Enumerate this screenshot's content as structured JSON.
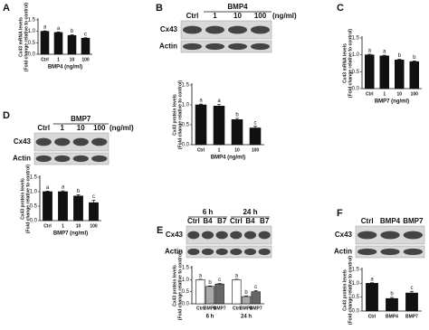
{
  "chart_data": [
    {
      "type": "bar",
      "panel": "A",
      "ylabel": [
        "Cx43 mRNA levels",
        "(Fold change relative to control)"
      ],
      "xlabel": "BMP4 (ng/ml)",
      "categories": [
        "Ctrl",
        "1",
        "10",
        "100"
      ],
      "values": [
        1.0,
        0.95,
        0.82,
        0.7
      ],
      "errors": [
        0.02,
        0.03,
        0.03,
        0.02
      ],
      "labels": [
        "a",
        "a",
        "b",
        "c"
      ],
      "color": "#111111",
      "ylim": [
        0,
        1.5
      ],
      "yticks": [
        {
          "value": 0,
          "label": "0.0"
        },
        0.5,
        {
          "value": 1,
          "label": "1.0"
        },
        1.5
      ]
    },
    {
      "type": "bar",
      "panel": "B",
      "blot": {
        "header": "BMP4",
        "lanes": [
          "Ctrl",
          "1",
          "10",
          "100"
        ],
        "unit": "(ng/ml)",
        "rows": [
          "Cx43",
          "Actin"
        ]
      },
      "ylabel": [
        "Cx43 protein levels",
        "(Fold change relative to control)"
      ],
      "xlabel": "BMP4 (ng/ml)",
      "categories": [
        "Ctrl",
        "1",
        "10",
        "100"
      ],
      "values": [
        1.0,
        0.97,
        0.63,
        0.42
      ],
      "errors": [
        0.02,
        0.04,
        0.03,
        0.04
      ],
      "labels": [
        "a",
        "a",
        "b",
        "c"
      ],
      "color": "#111111",
      "ylim": [
        0,
        1.5
      ],
      "yticks": [
        {
          "value": 0,
          "label": "0.0"
        },
        0.5,
        {
          "value": 1,
          "label": "1.0"
        },
        1.5
      ]
    },
    {
      "type": "bar",
      "panel": "C",
      "ylabel": [
        "Cx43 mRNA levels",
        "(Fold change relative to control)"
      ],
      "xlabel": "BMP7 (ng/ml)",
      "categories": [
        "Ctrl",
        "1",
        "10",
        "100"
      ],
      "values": [
        1.0,
        0.97,
        0.85,
        0.8
      ],
      "errors": [
        0.02,
        0.02,
        0.02,
        0.02
      ],
      "labels": [
        "a",
        "a",
        "b",
        "b"
      ],
      "color": "#111111",
      "ylim": [
        0,
        1.5
      ],
      "yticks": [
        {
          "value": 0,
          "label": "0.0"
        },
        0.5,
        {
          "value": 1,
          "label": "1.0"
        },
        1.5
      ]
    },
    {
      "type": "bar",
      "panel": "D",
      "blot": {
        "header": "BMP7",
        "lanes": [
          "Ctrl",
          "1",
          "10",
          "100"
        ],
        "unit": "(ng/ml)",
        "rows": [
          "Cx43",
          "Actin"
        ]
      },
      "ylabel": [
        "Cx43 protein levels",
        "(Fold change relative to control)"
      ],
      "xlabel": "BMP7 (ng/ml)",
      "categories": [
        "Ctrl",
        "1",
        "10",
        "100"
      ],
      "values": [
        1.0,
        1.0,
        0.85,
        0.62
      ],
      "errors": [
        0.02,
        0.03,
        0.04,
        0.08
      ],
      "labels": [
        "a",
        "a",
        "b",
        "c"
      ],
      "color": "#111111",
      "ylim": [
        0,
        1.5
      ],
      "yticks": [
        {
          "value": 0,
          "label": "0.0"
        },
        0.5,
        {
          "value": 1,
          "label": "1.0"
        },
        1.5
      ]
    },
    {
      "type": "grouped-bar",
      "panel": "E",
      "blot": {
        "groups": [
          "6 h",
          "24 h"
        ],
        "lanes": [
          "Ctrl",
          "B4",
          "B7",
          "Ctrl",
          "B4",
          "B7"
        ],
        "rows": [
          "Cx43",
          "Actin"
        ]
      },
      "ylabel": [
        "Cx43 protein levels",
        "(Fold change relative to control)"
      ],
      "categories": [
        "6 h",
        "24 h"
      ],
      "series": [
        {
          "name": "Ctrl",
          "color": "#ffffff",
          "values": [
            1.0,
            1.0
          ],
          "errors": [
            0.02,
            0.02
          ],
          "labels": [
            "a",
            "a"
          ]
        },
        {
          "name": "BMP4",
          "color": "#aaaaaa",
          "values": [
            0.72,
            0.3
          ],
          "errors": [
            0.02,
            0.03
          ],
          "labels": [
            "b",
            "b"
          ]
        },
        {
          "name": "BMP7",
          "color": "#666666",
          "values": [
            0.82,
            0.5
          ],
          "errors": [
            0.02,
            0.04
          ],
          "labels": [
            "c",
            "c"
          ]
        }
      ],
      "ylim": [
        0,
        1.5
      ],
      "yticks": [
        {
          "value": 0,
          "label": "0.0"
        },
        0.5,
        {
          "value": 1,
          "label": "1.0"
        },
        1.5
      ]
    },
    {
      "type": "bar",
      "panel": "F",
      "blot": {
        "lanes": [
          "Ctrl",
          "BMP4",
          "BMP7"
        ],
        "rows": [
          "Cx43",
          "Actin"
        ]
      },
      "ylabel": [
        "Cx43 protein levels",
        "(Fold change relative to control)"
      ],
      "categories": [
        "Ctrl",
        "BMP4",
        "BMP7"
      ],
      "values": [
        1.0,
        0.45,
        0.65
      ],
      "errors": [
        0.02,
        0.04,
        0.06
      ],
      "labels": [
        "a",
        "b",
        "c"
      ],
      "color": "#111111",
      "ylim": [
        0,
        1.5
      ],
      "yticks": [
        {
          "value": 0,
          "label": "0.0"
        },
        0.5,
        {
          "value": 1,
          "label": "1.0"
        },
        1.5
      ]
    }
  ]
}
